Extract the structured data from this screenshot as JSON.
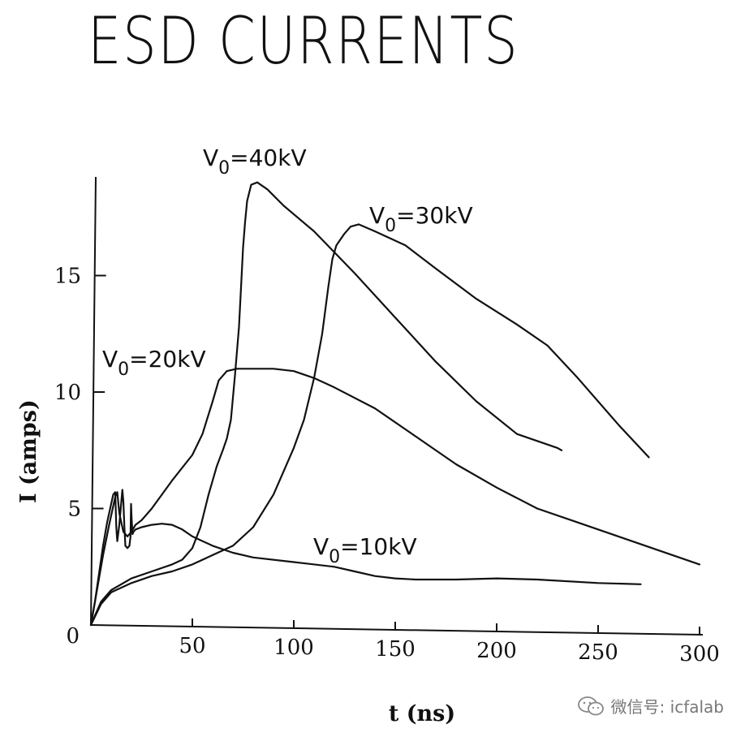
{
  "chart_data": {
    "type": "line",
    "title": "ESD CURRENTS",
    "xlabel": "t (ns)",
    "ylabel": "I (amps)",
    "xlim": [
      0,
      300
    ],
    "ylim": [
      0,
      19
    ],
    "x_ticks": [
      50,
      100,
      150,
      200,
      250,
      300
    ],
    "y_ticks": [
      0,
      5,
      10,
      15
    ],
    "grid": false,
    "series": [
      {
        "name": "V0=10kV",
        "label_main": "V",
        "label_sub": "0",
        "label_rest": "=10kV",
        "points": [
          [
            0,
            0
          ],
          [
            2,
            1
          ],
          [
            4,
            2.2
          ],
          [
            6,
            3.4
          ],
          [
            8,
            4.4
          ],
          [
            10,
            5.2
          ],
          [
            11,
            5.6
          ],
          [
            12,
            5.7
          ],
          [
            12.5,
            4.2
          ],
          [
            13,
            3.6
          ],
          [
            14,
            4.3
          ],
          [
            15,
            5.3
          ],
          [
            15.5,
            5.8
          ],
          [
            16,
            5.3
          ],
          [
            16.5,
            4.2
          ],
          [
            17,
            3.4
          ],
          [
            18,
            3.3
          ],
          [
            19,
            3.4
          ],
          [
            19.5,
            3.8
          ],
          [
            19.8,
            5.2
          ],
          [
            20,
            4.7
          ],
          [
            20.5,
            3.9
          ],
          [
            21,
            4
          ],
          [
            22,
            4.1
          ],
          [
            25,
            4.2
          ],
          [
            30,
            4.3
          ],
          [
            35,
            4.35
          ],
          [
            40,
            4.3
          ],
          [
            45,
            4.1
          ],
          [
            50,
            3.8
          ],
          [
            60,
            3.4
          ],
          [
            70,
            3.1
          ],
          [
            80,
            2.9
          ],
          [
            100,
            2.7
          ],
          [
            120,
            2.5
          ],
          [
            130,
            2.3
          ],
          [
            140,
            2.1
          ],
          [
            150,
            2
          ],
          [
            160,
            1.95
          ],
          [
            180,
            1.95
          ],
          [
            200,
            2
          ],
          [
            220,
            1.95
          ],
          [
            250,
            1.8
          ],
          [
            271,
            1.75
          ]
        ]
      },
      {
        "name": "V0=20kV",
        "label_main": "V",
        "label_sub": "0",
        "label_rest": "=20kV",
        "points": [
          [
            0,
            0
          ],
          [
            3,
            1.5
          ],
          [
            6,
            3
          ],
          [
            9,
            4.3
          ],
          [
            12,
            5.5
          ],
          [
            13,
            5.7
          ],
          [
            14,
            4.8
          ],
          [
            16,
            4
          ],
          [
            18,
            3.8
          ],
          [
            20,
            4
          ],
          [
            22,
            4.3
          ],
          [
            25,
            4.5
          ],
          [
            30,
            5
          ],
          [
            40,
            6.2
          ],
          [
            50,
            7.3
          ],
          [
            55,
            8.2
          ],
          [
            60,
            9.6
          ],
          [
            63,
            10.5
          ],
          [
            67,
            10.9
          ],
          [
            72,
            11
          ],
          [
            80,
            11
          ],
          [
            90,
            11
          ],
          [
            100,
            10.9
          ],
          [
            110,
            10.6
          ],
          [
            120,
            10.2
          ],
          [
            140,
            9.3
          ],
          [
            160,
            8.1
          ],
          [
            180,
            6.9
          ],
          [
            200,
            5.9
          ],
          [
            220,
            5
          ],
          [
            240,
            4.4
          ],
          [
            260,
            3.8
          ],
          [
            280,
            3.2
          ],
          [
            300,
            2.6
          ]
        ]
      },
      {
        "name": "V0=30kV",
        "label_main": "V",
        "label_sub": "0",
        "label_rest": "=30kV",
        "points": [
          [
            0,
            0
          ],
          [
            5,
            0.9
          ],
          [
            10,
            1.4
          ],
          [
            20,
            1.8
          ],
          [
            30,
            2.1
          ],
          [
            40,
            2.3
          ],
          [
            50,
            2.6
          ],
          [
            60,
            3
          ],
          [
            70,
            3.4
          ],
          [
            80,
            4.2
          ],
          [
            90,
            5.6
          ],
          [
            100,
            7.6
          ],
          [
            105,
            8.8
          ],
          [
            110,
            10.6
          ],
          [
            114,
            12.5
          ],
          [
            117,
            14.5
          ],
          [
            119,
            15.7
          ],
          [
            121,
            16.3
          ],
          [
            125,
            16.8
          ],
          [
            128,
            17.1
          ],
          [
            132,
            17.2
          ],
          [
            140,
            16.9
          ],
          [
            155,
            16.3
          ],
          [
            170,
            15.3
          ],
          [
            190,
            14
          ],
          [
            210,
            12.9
          ],
          [
            225,
            12
          ],
          [
            240,
            10.6
          ],
          [
            260,
            8.6
          ],
          [
            275,
            7.2
          ]
        ]
      },
      {
        "name": "V0=40kV",
        "label_main": "V",
        "label_sub": "0",
        "label_rest": "=40kV",
        "points": [
          [
            0,
            0
          ],
          [
            5,
            1
          ],
          [
            10,
            1.5
          ],
          [
            20,
            2
          ],
          [
            30,
            2.3
          ],
          [
            40,
            2.6
          ],
          [
            45,
            2.8
          ],
          [
            50,
            3.3
          ],
          [
            54,
            4.2
          ],
          [
            58,
            5.6
          ],
          [
            62,
            6.8
          ],
          [
            65,
            7.5
          ],
          [
            67,
            8
          ],
          [
            69,
            8.8
          ],
          [
            71,
            10.7
          ],
          [
            73,
            12.8
          ],
          [
            74,
            14.5
          ],
          [
            75,
            16.2
          ],
          [
            76,
            17.3
          ],
          [
            77,
            18.2
          ],
          [
            79,
            18.9
          ],
          [
            82,
            19
          ],
          [
            87,
            18.7
          ],
          [
            95,
            18
          ],
          [
            110,
            16.9
          ],
          [
            130,
            15.1
          ],
          [
            150,
            13.2
          ],
          [
            170,
            11.3
          ],
          [
            190,
            9.6
          ],
          [
            210,
            8.2
          ],
          [
            230,
            7.6
          ],
          [
            232,
            7.5
          ]
        ]
      }
    ]
  },
  "watermark": {
    "text": "微信号: icfalab",
    "icon": "wechat-icon"
  }
}
